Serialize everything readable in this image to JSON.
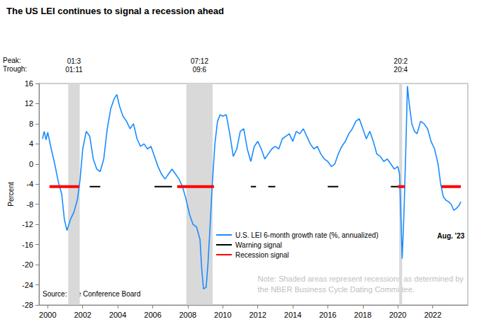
{
  "chart_data": {
    "type": "line",
    "title": "The US LEI continues to signal a recession ahead",
    "y_label": "Percent",
    "x": [
      1999.7,
      1999.8,
      1999.9,
      2000.0,
      2000.2,
      2000.4,
      2000.6,
      2000.8,
      2000.95,
      2001.1,
      2001.3,
      2001.5,
      2001.7,
      2001.85,
      2002.0,
      2002.2,
      2002.4,
      2002.6,
      2002.8,
      2003.0,
      2003.2,
      2003.4,
      2003.6,
      2003.8,
      2003.95,
      2004.1,
      2004.3,
      2004.5,
      2004.7,
      2004.9,
      2005.1,
      2005.3,
      2005.5,
      2005.7,
      2005.9,
      2006.1,
      2006.3,
      2006.5,
      2006.7,
      2006.9,
      2007.1,
      2007.3,
      2007.5,
      2007.7,
      2007.9,
      2008.1,
      2008.3,
      2008.5,
      2008.7,
      2008.8,
      2008.9,
      2009.05,
      2009.15,
      2009.25,
      2009.4,
      2009.55,
      2009.7,
      2009.85,
      2010.0,
      2010.2,
      2010.4,
      2010.6,
      2010.8,
      2011.0,
      2011.2,
      2011.4,
      2011.6,
      2011.8,
      2012.0,
      2012.2,
      2012.4,
      2012.6,
      2012.8,
      2013.0,
      2013.2,
      2013.4,
      2013.6,
      2013.8,
      2014.0,
      2014.2,
      2014.4,
      2014.6,
      2014.8,
      2015.0,
      2015.2,
      2015.4,
      2015.6,
      2015.8,
      2016.0,
      2016.2,
      2016.4,
      2016.6,
      2016.8,
      2017.0,
      2017.2,
      2017.4,
      2017.6,
      2017.8,
      2018.0,
      2018.2,
      2018.4,
      2018.6,
      2018.8,
      2019.0,
      2019.2,
      2019.4,
      2019.6,
      2019.8,
      2020.0,
      2020.1,
      2020.25,
      2020.35,
      2020.45,
      2020.55,
      2020.65,
      2020.8,
      2020.95,
      2021.1,
      2021.3,
      2021.5,
      2021.7,
      2021.9,
      2022.1,
      2022.3,
      2022.45,
      2022.6,
      2022.75,
      2022.9,
      2023.05,
      2023.2,
      2023.35,
      2023.5,
      2023.6
    ],
    "series": [
      {
        "name": "U.S. LEI 6-month growth rate (%, annualized)",
        "color": "#1a8cff",
        "values": [
          5,
          6.5,
          4.8,
          6.3,
          3,
          0,
          -3.5,
          -6,
          -11,
          -13.2,
          -11,
          -9.5,
          -7,
          -3,
          3,
          6.5,
          5.5,
          1,
          -1,
          -1.5,
          1,
          7,
          11,
          13,
          13.8,
          11.5,
          9.5,
          8.5,
          7,
          8,
          5,
          3.5,
          4,
          3,
          3.5,
          1.5,
          -0.5,
          -2,
          -3,
          -2,
          -1,
          -2,
          -3,
          -4.5,
          -7,
          -10,
          -12,
          -12.5,
          -15,
          -21,
          -24.8,
          -24.5,
          -20,
          -14,
          -4,
          4,
          8.5,
          9.8,
          9.5,
          9.8,
          6,
          1.5,
          3,
          6.5,
          7,
          3,
          0.5,
          3.5,
          4.5,
          3,
          1,
          2,
          3,
          3.5,
          3,
          5,
          5.5,
          6,
          4.5,
          6.5,
          6,
          7,
          5.5,
          4,
          3,
          3.5,
          2,
          1,
          0.5,
          -0.5,
          0,
          2,
          3.5,
          4.5,
          6,
          7,
          8.5,
          9,
          7,
          5,
          6.5,
          4.5,
          2,
          1.5,
          0.5,
          1,
          0,
          -1,
          -0.5,
          -2,
          -18.8,
          -10,
          2,
          15.5,
          12,
          8,
          6.5,
          6,
          8.5,
          8,
          7,
          4.5,
          3,
          0,
          -4,
          -6.5,
          -7.2,
          -7.5,
          -8,
          -9.2,
          -8.8,
          -8.2,
          -7.5
        ]
      }
    ],
    "signals": [
      {
        "name": "Warning signal",
        "color": "#000000",
        "level": -4.5,
        "periods": [
          [
            2002.4,
            2003.0
          ],
          [
            2006.1,
            2007.1
          ],
          [
            2011.6,
            2011.9
          ],
          [
            2012.6,
            2013.0
          ],
          [
            2016.0,
            2016.6
          ],
          [
            2019.6,
            2020.0
          ]
        ]
      },
      {
        "name": "Recession signal",
        "color": "#ff0000",
        "level": -4.5,
        "periods": [
          [
            2000.1,
            2001.8
          ],
          [
            2007.4,
            2009.5
          ],
          [
            2020.0,
            2020.4
          ],
          [
            2022.5,
            2023.6
          ]
        ]
      }
    ],
    "recessions": {
      "peak_label": "Peak:",
      "trough_label": "Trough:",
      "color": "#d9d9d9",
      "periods": [
        {
          "peak": "01:3",
          "trough": "01:11",
          "start": 2001.17,
          "end": 2001.83
        },
        {
          "peak": "07:12",
          "trough": "09:6",
          "start": 2007.92,
          "end": 2009.42
        },
        {
          "peak": "20:2",
          "trough": "20:4",
          "start": 2020.08,
          "end": 2020.25
        }
      ]
    },
    "end_label": "Aug. '23",
    "note": "Note: Shaded areas represent recessions as determined by\nthe NBER Business Cycle Dating Committee.",
    "source": "Source: The Conference Board",
    "xlim": [
      1999.5,
      2024
    ],
    "xticks": [
      2000,
      2002,
      2004,
      2006,
      2008,
      2010,
      2012,
      2014,
      2016,
      2018,
      2020,
      2022
    ],
    "ylim": [
      -28,
      16
    ],
    "yticks": [
      -28,
      -24,
      -20,
      -16,
      -12,
      -8,
      -4,
      0,
      4,
      8,
      12,
      16
    ],
    "grid": false,
    "legend": "lower right"
  }
}
